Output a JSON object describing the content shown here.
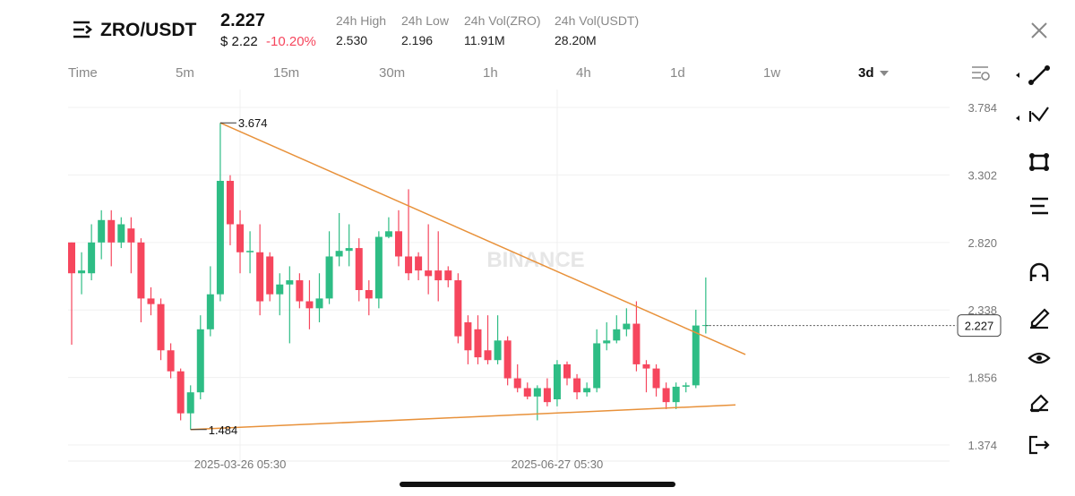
{
  "header": {
    "symbol": "ZRO/USDT",
    "price": "2.227",
    "price_usd": "$ 2.22",
    "change": "-10.20%",
    "stats": [
      {
        "label": "24h High",
        "value": "2.530"
      },
      {
        "label": "24h Low",
        "value": "2.196"
      },
      {
        "label": "24h Vol(ZRO)",
        "value": "11.91M"
      },
      {
        "label": "24h Vol(USDT)",
        "value": "28.20M"
      }
    ]
  },
  "timeframes": [
    "Time",
    "5m",
    "15m",
    "30m",
    "1h",
    "4h",
    "1d",
    "1w",
    "3d"
  ],
  "watermark": "BINANCE",
  "chart_data": {
    "type": "candlestick",
    "categories": [
      null,
      null,
      null,
      null,
      null,
      null,
      null,
      null,
      null,
      null,
      null,
      null,
      null,
      null,
      null,
      null,
      null,
      "2025-03-26 05:30",
      null,
      null,
      null,
      null,
      null,
      null,
      null,
      null,
      null,
      null,
      null,
      null,
      null,
      null,
      null,
      null,
      null,
      null,
      null,
      null,
      null,
      null,
      null,
      null,
      null,
      null,
      null,
      null,
      null,
      null,
      null,
      "2025-06-27 05:30",
      null,
      null,
      null,
      null,
      null,
      null,
      null,
      null,
      null,
      null,
      null,
      null,
      null,
      null,
      null
    ],
    "open": [
      2.82,
      2.6,
      2.6,
      2.82,
      2.98,
      2.82,
      2.92,
      2.82,
      2.42,
      2.38,
      2.05,
      1.9,
      1.6,
      1.75,
      2.2,
      2.45,
      3.26,
      2.95,
      2.75,
      2.75,
      2.72,
      2.45,
      2.52,
      2.55,
      2.4,
      2.35,
      2.42,
      2.72,
      2.76,
      2.78,
      2.48,
      2.42,
      2.86,
      2.9,
      2.72,
      2.72,
      2.62,
      2.62,
      2.62,
      2.55,
      2.25,
      2.2,
      2.05,
      1.98,
      2.12,
      1.85,
      1.78,
      1.72,
      1.78,
      1.7,
      1.95,
      1.85,
      1.75,
      1.78,
      2.1,
      2.12,
      2.2,
      2.24,
      1.95,
      1.92,
      1.78,
      1.68,
      1.79,
      1.8,
      2.227
    ],
    "high": [
      2.82,
      2.75,
      2.95,
      3.05,
      3.05,
      3.0,
      3.0,
      2.85,
      2.5,
      2.42,
      2.1,
      1.92,
      1.8,
      2.3,
      2.65,
      3.674,
      3.3,
      3.05,
      2.9,
      2.95,
      2.75,
      2.6,
      2.65,
      2.6,
      2.55,
      2.6,
      2.9,
      3.03,
      2.95,
      2.85,
      2.55,
      2.9,
      3.0,
      3.05,
      3.2,
      2.75,
      2.95,
      2.9,
      2.65,
      2.6,
      2.3,
      2.3,
      2.3,
      2.3,
      2.15,
      1.95,
      1.82,
      1.8,
      1.85,
      1.98,
      1.97,
      1.88,
      1.82,
      2.2,
      2.25,
      2.3,
      2.35,
      2.4,
      1.98,
      1.95,
      1.82,
      1.82,
      1.82,
      2.34,
      2.57
    ],
    "low": [
      2.09,
      2.45,
      2.55,
      2.7,
      2.65,
      2.78,
      2.6,
      2.25,
      2.3,
      1.98,
      1.85,
      1.55,
      1.484,
      1.7,
      2.15,
      2.4,
      2.8,
      2.6,
      2.6,
      2.3,
      2.4,
      2.3,
      2.1,
      2.35,
      2.2,
      2.25,
      2.38,
      2.65,
      2.65,
      2.4,
      2.3,
      2.35,
      2.85,
      2.65,
      2.55,
      2.55,
      2.45,
      2.4,
      2.5,
      2.1,
      1.95,
      1.95,
      1.95,
      1.95,
      1.8,
      1.75,
      1.7,
      1.55,
      1.65,
      1.65,
      1.8,
      1.7,
      1.72,
      1.75,
      2.05,
      2.1,
      2.15,
      1.9,
      1.75,
      1.72,
      1.63,
      1.63,
      1.75,
      1.78,
      2.17
    ],
    "close": [
      2.6,
      2.62,
      2.82,
      2.98,
      2.82,
      2.95,
      2.82,
      2.42,
      2.38,
      2.05,
      1.9,
      1.6,
      1.75,
      2.2,
      2.45,
      3.26,
      2.95,
      2.75,
      2.76,
      2.4,
      2.45,
      2.52,
      2.55,
      2.4,
      2.35,
      2.42,
      2.72,
      2.76,
      2.78,
      2.48,
      2.42,
      2.86,
      2.9,
      2.72,
      2.6,
      2.62,
      2.58,
      2.55,
      2.55,
      2.15,
      2.05,
      2.0,
      1.98,
      2.12,
      1.85,
      1.78,
      1.72,
      1.78,
      1.68,
      1.95,
      1.85,
      1.75,
      1.78,
      2.1,
      2.12,
      2.2,
      2.24,
      1.95,
      1.92,
      1.78,
      1.68,
      1.79,
      1.8,
      2.227,
      2.23
    ],
    "up_color": "#2ebd85",
    "down_color": "#f6465d",
    "ylim": [
      1.259,
      3.912
    ],
    "yticks": [
      1.374,
      1.856,
      2.338,
      {
        "value": 2.82,
        "label": "2.820"
      },
      3.302,
      3.784
    ],
    "grid": true,
    "trendlines": [
      {
        "x": [
          15,
          68
        ],
        "y": [
          3.674,
          2.02
        ],
        "color": "#e8913a"
      },
      {
        "x": [
          12,
          67
        ],
        "y": [
          1.484,
          1.66
        ],
        "color": "#e8913a"
      }
    ],
    "current_price": 2.227
  }
}
